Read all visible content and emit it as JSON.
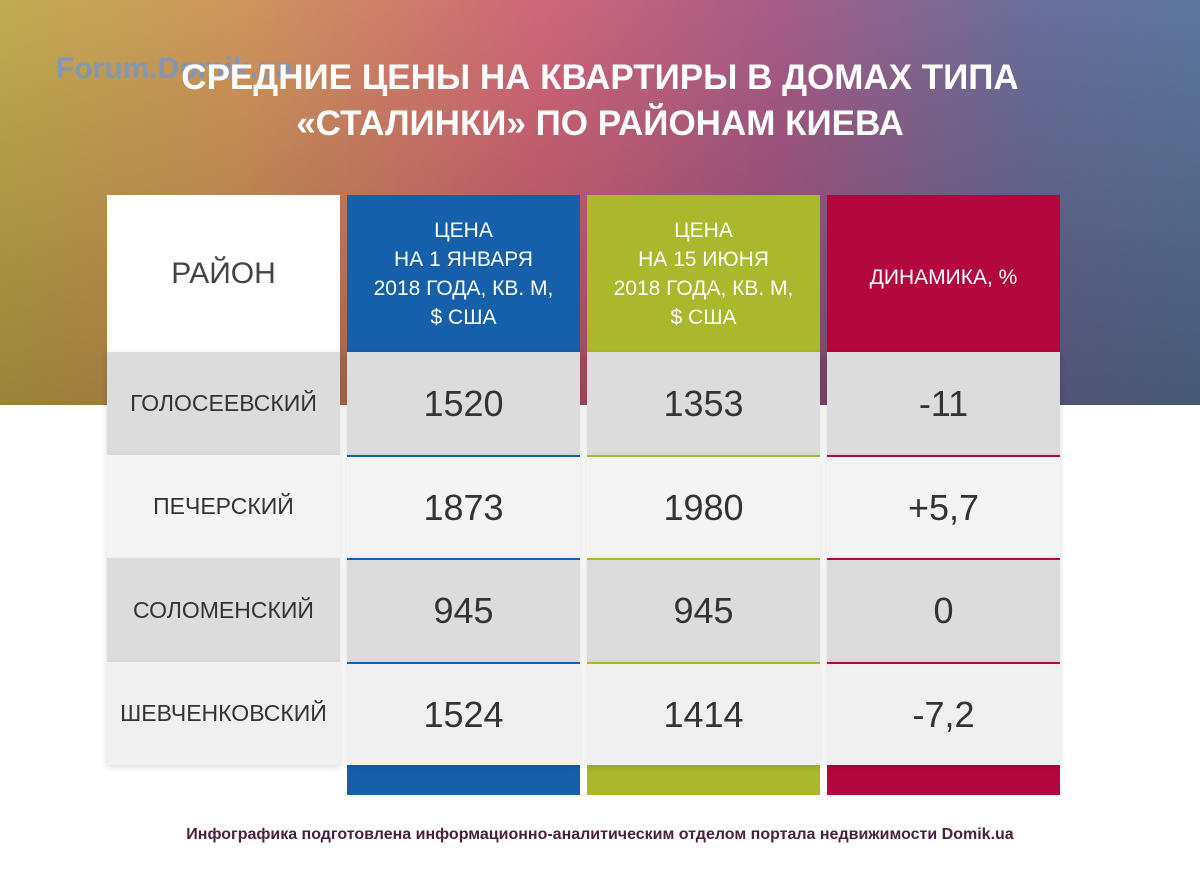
{
  "watermark": "Forum.Domik.ua",
  "header": {
    "title": [
      "СРЕДНИЕ ЦЕНЫ НА КВАРТИРЫ В ДОМАХ ТИПА",
      "«СТАЛИНКИ» ПО РАЙОНАМ КИЕВА"
    ]
  },
  "table": {
    "columns": [
      [
        "РАЙОН"
      ],
      [
        "ЦЕНА",
        "НА 1 ЯНВАРЯ",
        "2018 ГОДА, КВ. М,",
        "$ США"
      ],
      [
        "ЦЕНА",
        "НА 15 ИЮНЯ",
        "2018 ГОДА, КВ. М,",
        "$ США"
      ],
      [
        "ДИНАМИКА, %"
      ]
    ],
    "rows": [
      [
        "ГОЛОСЕЕВСКИЙ",
        "1520",
        "1353",
        "-11"
      ],
      [
        "ПЕЧЕРСКИЙ",
        "1873",
        "1980",
        "+5,7"
      ],
      [
        "СОЛОМЕНСКИЙ",
        "945",
        "945",
        "0"
      ],
      [
        "ШЕВЧЕНКОВСКИЙ",
        "1524",
        "1414",
        "-7,2"
      ]
    ]
  },
  "footer": "Инфографика подготовлена информационно-аналитическим отделом портала недвижимости Domik.ua"
}
